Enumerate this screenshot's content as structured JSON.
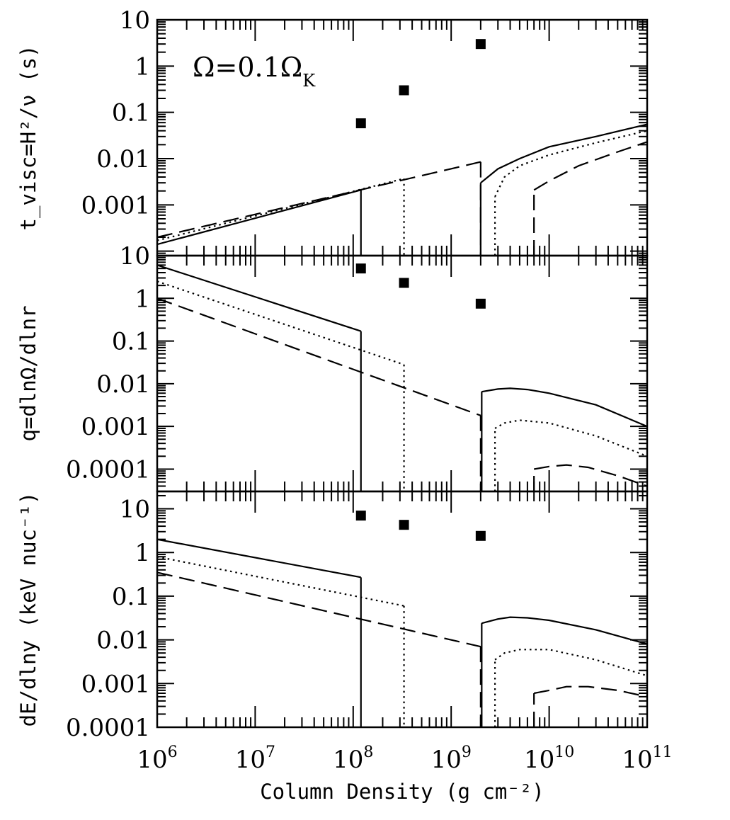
{
  "chart_data": [
    {
      "type": "line",
      "ylabel": "t_visc=H²/ν (s)",
      "ylim": [
        8e-05,
        10
      ],
      "yscale": "log",
      "y_ticklabels": [
        "10",
        "1",
        "0.1",
        "0.01",
        "0.001"
      ],
      "annotation": "Ω=0.1Ω_K",
      "markers": {
        "x": [
          120000000.0,
          330000000.0,
          2000000000.0
        ],
        "y": [
          0.058,
          0.3,
          3
        ]
      },
      "series": [
        {
          "style": "solid",
          "segments": [
            {
              "x": [
                1000000.0,
                120000000.0
              ],
              "y": [
                0.00014,
                0.0021
              ]
            },
            {
              "x": [
                2000000000.0,
                3000000000.0,
                5000000000.0,
                10000000000.0,
                30000000000.0,
                100000000000.0
              ],
              "y": [
                0.003,
                0.006,
                0.01,
                0.018,
                0.03,
                0.055
              ]
            }
          ]
        },
        {
          "style": "dotted",
          "segments": [
            {
              "x": [
                1000000.0,
                330000000.0
              ],
              "y": [
                0.00017,
                0.0037
              ]
            },
            {
              "x": [
                2800000000.0,
                3500000000.0,
                5000000000.0,
                10000000000.0,
                30000000000.0,
                100000000000.0
              ],
              "y": [
                0.0015,
                0.004,
                0.007,
                0.012,
                0.022,
                0.04
              ]
            }
          ]
        },
        {
          "style": "dashed",
          "segments": [
            {
              "x": [
                1000000.0,
                2000000000.0
              ],
              "y": [
                0.0002,
                0.0085
              ]
            },
            {
              "x": [
                7000000000.0,
                10000000000.0,
                20000000000.0,
                50000000000.0,
                100000000000.0
              ],
              "y": [
                0.0021,
                0.0033,
                0.007,
                0.014,
                0.023
              ]
            }
          ]
        }
      ]
    },
    {
      "type": "line",
      "ylabel": "q=dlnΩ/dlnr",
      "ylim": [
        3e-05,
        10
      ],
      "yscale": "log",
      "y_ticklabels": [
        "10",
        "1",
        "0.1",
        "0.01",
        "0.001",
        "0.0001"
      ],
      "markers": {
        "x": [
          120000000.0,
          330000000.0,
          2000000000.0
        ],
        "y": [
          5,
          2.3,
          0.75
        ]
      },
      "series": [
        {
          "style": "solid",
          "segments": [
            {
              "x": [
                1000000.0,
                120000000.0
              ],
              "y": [
                6,
                0.17
              ]
            },
            {
              "x": [
                2050000000.0,
                3000000000.0,
                4000000000.0,
                6000000000.0,
                10000000000.0,
                30000000000.0,
                100000000000.0
              ],
              "y": [
                0.0065,
                0.0075,
                0.0078,
                0.0073,
                0.006,
                0.0032,
                0.001
              ]
            }
          ]
        },
        {
          "style": "dotted",
          "segments": [
            {
              "x": [
                1000000.0,
                330000000.0
              ],
              "y": [
                2.5,
                0.028
              ]
            },
            {
              "x": [
                2800000000.0,
                3500000000.0,
                5000000000.0,
                10000000000.0,
                30000000000.0,
                100000000000.0
              ],
              "y": [
                0.0009,
                0.0012,
                0.0014,
                0.0012,
                0.0006,
                0.0002
              ]
            }
          ]
        },
        {
          "style": "dashed",
          "segments": [
            {
              "x": [
                1000000.0,
                2000000000.0
              ],
              "y": [
                1,
                0.0018
              ]
            },
            {
              "x": [
                7000000000.0,
                10000000000.0,
                15000000000.0,
                25000000000.0,
                50000000000.0,
                100000000000.0
              ],
              "y": [
                0.0001,
                0.000115,
                0.000125,
                0.00011,
                7e-05,
                4e-05
              ]
            }
          ]
        }
      ]
    },
    {
      "type": "line",
      "ylabel": "dE/dlny (keV nuc⁻¹)",
      "ylim": [
        0.0001,
        25
      ],
      "yscale": "log",
      "y_ticklabels": [
        "10",
        "1",
        "0.1",
        "0.01",
        "0.001",
        "0.0001"
      ],
      "xlabel": "Column Density (g cm⁻²)",
      "xlim": [
        1000000.0,
        100000000000.0
      ],
      "xscale": "log",
      "x_ticklabels": [
        "10^6",
        "10^7",
        "10^8",
        "10^9",
        "10^10",
        "10^11"
      ],
      "markers": {
        "x": [
          120000000.0,
          330000000.0,
          2000000000.0
        ],
        "y": [
          7,
          4.3,
          2.4
        ]
      },
      "series": [
        {
          "style": "solid",
          "segments": [
            {
              "x": [
                1000000.0,
                120000000.0
              ],
              "y": [
                2,
                0.27
              ]
            },
            {
              "x": [
                2050000000.0,
                3000000000.0,
                4000000000.0,
                6000000000.0,
                10000000000.0,
                30000000000.0,
                100000000000.0
              ],
              "y": [
                0.024,
                0.03,
                0.033,
                0.032,
                0.028,
                0.017,
                0.008
              ]
            }
          ]
        },
        {
          "style": "dotted",
          "segments": [
            {
              "x": [
                1000000.0,
                330000000.0
              ],
              "y": [
                0.8,
                0.06
              ]
            },
            {
              "x": [
                2800000000.0,
                3500000000.0,
                5000000000.0,
                10000000000.0,
                30000000000.0,
                100000000000.0
              ],
              "y": [
                0.0035,
                0.005,
                0.006,
                0.006,
                0.0035,
                0.0015
              ]
            }
          ]
        },
        {
          "style": "dashed",
          "segments": [
            {
              "x": [
                1000000.0,
                2000000000.0
              ],
              "y": [
                0.35,
                0.007
              ]
            },
            {
              "x": [
                7000000000.0,
                10000000000.0,
                15000000000.0,
                25000000000.0,
                50000000000.0,
                100000000000.0
              ],
              "y": [
                0.0006,
                0.0007,
                0.00085,
                0.00085,
                0.0007,
                0.0005
              ]
            }
          ]
        }
      ]
    }
  ]
}
